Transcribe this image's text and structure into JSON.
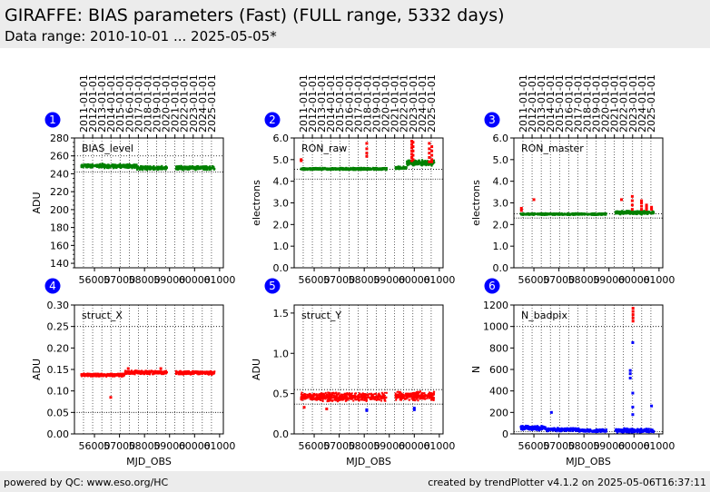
{
  "header": {
    "title": "GIRAFFE: BIAS parameters (Fast) (FULL range, 5332 days)",
    "subtitle": "Data range: 2010-10-01 ... 2025-05-05*"
  },
  "footer": {
    "left": "powered by QC: www.eso.org/HC",
    "right": "created by trendPlotter v4.1.2 on 2025-05-06T16:37:11"
  },
  "colors": {
    "good": "#008000",
    "outlier": "#ff0000",
    "blue": "#0000ff",
    "badge": "#0000ff"
  },
  "chart_data": [
    {
      "type": "scatter",
      "panel_number": "1",
      "label": "BIAS_level",
      "xlabel": "",
      "ylabel": "ADU",
      "xlim": [
        55200,
        61150
      ],
      "ylim": [
        135,
        280
      ],
      "xticks": [
        56000,
        57000,
        58000,
        59000,
        60000,
        61000
      ],
      "xtick_labels": [
        "56000",
        "57000",
        "58000",
        "59000",
        "60000",
        "61000"
      ],
      "yticks": [
        140,
        160,
        180,
        200,
        220,
        240,
        260,
        280
      ],
      "ytick_labels": [
        "140",
        "160",
        "180",
        "200",
        "220",
        "240",
        "260",
        "280"
      ],
      "top_ticks": [
        "2011-01-01",
        "2012-01-01",
        "2013-01-01",
        "2014-01-01",
        "2015-01-01",
        "2016-01-01",
        "2017-01-01",
        "2018-01-01",
        "2019-01-01",
        "2020-01-01",
        "2021-01-01",
        "2022-01-01",
        "2023-01-01",
        "2024-01-01",
        "2025-01-01"
      ],
      "top_tick_mjd": [
        55562,
        55927,
        56293,
        56658,
        57023,
        57388,
        57754,
        58119,
        58484,
        58849,
        59215,
        59580,
        59945,
        60310,
        60676
      ],
      "ref_lines": [
        260,
        242
      ],
      "x_range": [
        55470,
        60800
      ],
      "gaps": [
        [
          58900,
          59250
        ]
      ],
      "dominant": "good",
      "segments": [
        {
          "x": [
            55470,
            56400
          ],
          "y_center": 249,
          "spread": 2.5
        },
        {
          "x": [
            56400,
            57700
          ],
          "y_center": 248.5,
          "spread": 2.5
        },
        {
          "x": [
            57700,
            58900
          ],
          "y_center": 246.5,
          "spread": 2.5
        },
        {
          "x": [
            59250,
            60800
          ],
          "y_center": 246.5,
          "spread": 2.5
        }
      ],
      "extras": []
    },
    {
      "type": "scatter",
      "panel_number": "2",
      "label": "RON_raw",
      "xlabel": "",
      "ylabel": "electrons",
      "xlim": [
        55200,
        61150
      ],
      "ylim": [
        0,
        6
      ],
      "xticks": [
        56000,
        57000,
        58000,
        59000,
        60000,
        61000
      ],
      "xtick_labels": [
        "56000",
        "57000",
        "58000",
        "59000",
        "60000",
        "61000"
      ],
      "yticks": [
        0,
        1,
        2,
        3,
        4,
        5,
        6
      ],
      "ytick_labels": [
        "0.0",
        "1.0",
        "2.0",
        "3.0",
        "4.0",
        "5.0",
        "6.0"
      ],
      "top_ticks": [
        "2011-01-01",
        "2012-01-01",
        "2013-01-01",
        "2014-01-01",
        "2015-01-01",
        "2016-01-01",
        "2017-01-01",
        "2018-01-01",
        "2019-01-01",
        "2020-01-01",
        "2021-01-01",
        "2022-01-01",
        "2023-01-01",
        "2024-01-01",
        "2025-01-01"
      ],
      "top_tick_mjd": [
        55562,
        55927,
        56293,
        56658,
        57023,
        57388,
        57754,
        58119,
        58484,
        58849,
        59215,
        59580,
        59945,
        60310,
        60676
      ],
      "ref_lines": [
        4.55,
        4.1
      ],
      "x_range": [
        55470,
        60800
      ],
      "gaps": [
        [
          58900,
          59250
        ]
      ],
      "dominant": "good",
      "segments": [
        {
          "x": [
            55470,
            58900
          ],
          "y_center": 4.57,
          "spread": 0.06
        },
        {
          "x": [
            59250,
            59700
          ],
          "y_center": 4.62,
          "spread": 0.08
        },
        {
          "x": [
            59700,
            60800
          ],
          "y_center": 4.85,
          "spread": 0.15
        }
      ],
      "extras": [
        {
          "color": "outlier",
          "x": 55480,
          "y": [
            4.95,
            5.0
          ]
        },
        {
          "color": "outlier",
          "x": 58100,
          "y": [
            5.15,
            5.3,
            5.5,
            5.75
          ]
        },
        {
          "color": "outlier",
          "x": 59900,
          "y": [
            4.95,
            5.1,
            5.25,
            5.4,
            5.55,
            5.7,
            5.85
          ]
        },
        {
          "color": "outlier",
          "x": 59950,
          "y": [
            5.0,
            5.2,
            5.4,
            5.6,
            5.8
          ]
        },
        {
          "color": "outlier",
          "x": 60600,
          "y": [
            4.9,
            5.1,
            5.3,
            5.5,
            5.75
          ]
        },
        {
          "color": "outlier",
          "x": 60700,
          "y": [
            4.9,
            5.0,
            5.2,
            5.4,
            5.6
          ]
        }
      ]
    },
    {
      "type": "scatter",
      "panel_number": "3",
      "label": "RON_master",
      "xlabel": "",
      "ylabel": "electrons",
      "xlim": [
        55200,
        61150
      ],
      "ylim": [
        0,
        6
      ],
      "xticks": [
        56000,
        57000,
        58000,
        59000,
        60000,
        61000
      ],
      "xtick_labels": [
        "56000",
        "57000",
        "58000",
        "59000",
        "60000",
        "61000"
      ],
      "yticks": [
        0,
        1,
        2,
        3,
        4,
        5,
        6
      ],
      "ytick_labels": [
        "0.0",
        "1.0",
        "2.0",
        "3.0",
        "4.0",
        "5.0",
        "6.0"
      ],
      "top_ticks": [
        "2011-01-01",
        "2012-01-01",
        "2013-01-01",
        "2014-01-01",
        "2015-01-01",
        "2016-01-01",
        "2017-01-01",
        "2018-01-01",
        "2019-01-01",
        "2020-01-01",
        "2021-01-01",
        "2022-01-01",
        "2023-01-01",
        "2024-01-01",
        "2025-01-01"
      ],
      "top_tick_mjd": [
        55562,
        55927,
        56293,
        56658,
        57023,
        57388,
        57754,
        58119,
        58484,
        58849,
        59215,
        59580,
        59945,
        60310,
        60676
      ],
      "ref_lines": [
        2.5,
        2.3
      ],
      "x_range": [
        55470,
        60800
      ],
      "gaps": [
        [
          58900,
          59250
        ]
      ],
      "dominant": "good",
      "segments": [
        {
          "x": [
            55470,
            58900
          ],
          "y_center": 2.48,
          "spread": 0.05
        },
        {
          "x": [
            59250,
            60800
          ],
          "y_center": 2.55,
          "spread": 0.1
        }
      ],
      "extras": [
        {
          "color": "outlier",
          "x": 55500,
          "y": [
            2.65,
            2.75
          ]
        },
        {
          "color": "outlier",
          "x": 56000,
          "y": [
            3.15
          ]
        },
        {
          "color": "outlier",
          "x": 59500,
          "y": [
            3.15
          ]
        },
        {
          "color": "outlier",
          "x": 59930,
          "y": [
            2.7,
            2.9,
            3.1,
            3.3
          ]
        },
        {
          "color": "outlier",
          "x": 60300,
          "y": [
            2.7,
            2.85,
            3.0,
            3.1
          ]
        },
        {
          "color": "outlier",
          "x": 60500,
          "y": [
            2.7,
            2.8,
            2.9
          ]
        },
        {
          "color": "outlier",
          "x": 60700,
          "y": [
            2.7,
            2.8
          ]
        }
      ]
    },
    {
      "type": "scatter",
      "panel_number": "4",
      "label": "struct_X",
      "xlabel": "MJD_OBS",
      "ylabel": "ADU",
      "xlim": [
        55200,
        61150
      ],
      "ylim": [
        0,
        0.3
      ],
      "xticks": [
        56000,
        57000,
        58000,
        59000,
        60000,
        61000
      ],
      "xtick_labels": [
        "56000",
        "57000",
        "58000",
        "59000",
        "60000",
        "61000"
      ],
      "yticks": [
        0,
        0.05,
        0.1,
        0.15,
        0.2,
        0.25,
        0.3
      ],
      "ytick_labels": [
        "0.00",
        "0.05",
        "0.10",
        "0.15",
        "0.20",
        "0.25",
        "0.30"
      ],
      "top_ticks": [],
      "top_tick_mjd": [],
      "ref_lines": [
        0.25,
        0.05
      ],
      "x_range": [
        55470,
        60800
      ],
      "gaps": [
        [
          58900,
          59250
        ]
      ],
      "dominant": "outlier",
      "segments": [
        {
          "x": [
            55470,
            57200
          ],
          "y_center": 0.137,
          "spread": 0.004
        },
        {
          "x": [
            57200,
            58900
          ],
          "y_center": 0.143,
          "spread": 0.005
        },
        {
          "x": [
            59250,
            60800
          ],
          "y_center": 0.142,
          "spread": 0.005
        }
      ],
      "extras": [
        {
          "color": "outlier",
          "x": 56650,
          "y": [
            0.085
          ]
        },
        {
          "color": "outlier",
          "x": 57350,
          "y": [
            0.152
          ]
        },
        {
          "color": "outlier",
          "x": 58650,
          "y": [
            0.152
          ]
        }
      ]
    },
    {
      "type": "scatter",
      "panel_number": "5",
      "label": "struct_Y",
      "xlabel": "MJD_OBS",
      "ylabel": "ADU",
      "xlim": [
        55200,
        61150
      ],
      "ylim": [
        0,
        1.6
      ],
      "xticks": [
        56000,
        57000,
        58000,
        59000,
        60000,
        61000
      ],
      "xtick_labels": [
        "56000",
        "57000",
        "58000",
        "59000",
        "60000",
        "61000"
      ],
      "yticks": [
        0,
        0.5,
        1.0,
        1.5
      ],
      "ytick_labels": [
        "0.0",
        "0.5",
        "1.0",
        "1.5"
      ],
      "top_ticks": [],
      "top_tick_mjd": [],
      "ref_lines": [
        0.55,
        0.37
      ],
      "x_range": [
        55470,
        60800
      ],
      "gaps": [
        [
          58900,
          59250
        ]
      ],
      "dominant": "outlier",
      "segments": [
        {
          "x": [
            55470,
            58900
          ],
          "y_center": 0.46,
          "spread": 0.06
        },
        {
          "x": [
            59250,
            60800
          ],
          "y_center": 0.47,
          "spread": 0.06
        }
      ],
      "extras": [
        {
          "color": "blue",
          "x": 58100,
          "y": [
            0.3,
            0.29
          ]
        },
        {
          "color": "blue",
          "x": 60000,
          "y": [
            0.32,
            0.3
          ]
        },
        {
          "color": "outlier",
          "x": 55600,
          "y": [
            0.33
          ]
        },
        {
          "color": "outlier",
          "x": 56500,
          "y": [
            0.31
          ]
        }
      ]
    },
    {
      "type": "scatter",
      "panel_number": "6",
      "label": "N_badpix",
      "xlabel": "MJD_OBS",
      "ylabel": "N",
      "xlim": [
        55200,
        61150
      ],
      "ylim": [
        0,
        1200
      ],
      "xticks": [
        56000,
        57000,
        58000,
        59000,
        60000,
        61000
      ],
      "xtick_labels": [
        "56000",
        "57000",
        "58000",
        "59000",
        "60000",
        "61000"
      ],
      "yticks": [
        0,
        200,
        400,
        600,
        800,
        1000,
        1200
      ],
      "ytick_labels": [
        "0",
        "200",
        "400",
        "600",
        "800",
        "1000",
        "1200"
      ],
      "top_ticks": [],
      "top_tick_mjd": [],
      "ref_lines": [
        1000,
        20
      ],
      "x_range": [
        55470,
        60800
      ],
      "gaps": [
        [
          58900,
          59250
        ]
      ],
      "dominant": "blue",
      "segments": [
        {
          "x": [
            55470,
            56500
          ],
          "y_center": 55,
          "spread": 25
        },
        {
          "x": [
            56500,
            57800
          ],
          "y_center": 40,
          "spread": 18
        },
        {
          "x": [
            57800,
            58900
          ],
          "y_center": 30,
          "spread": 15
        },
        {
          "x": [
            59250,
            60800
          ],
          "y_center": 30,
          "spread": 25
        }
      ],
      "extras": [
        {
          "color": "blue",
          "x": 56700,
          "y": [
            200
          ]
        },
        {
          "color": "blue",
          "x": 59850,
          "y": [
            560,
            590,
            520
          ]
        },
        {
          "color": "blue",
          "x": 59950,
          "y": [
            850,
            380,
            250,
            180
          ]
        },
        {
          "color": "blue",
          "x": 60700,
          "y": [
            260
          ]
        },
        {
          "color": "outlier",
          "x": 59960,
          "y": [
            1050,
            1080,
            1110,
            1140,
            1170
          ]
        }
      ]
    }
  ]
}
